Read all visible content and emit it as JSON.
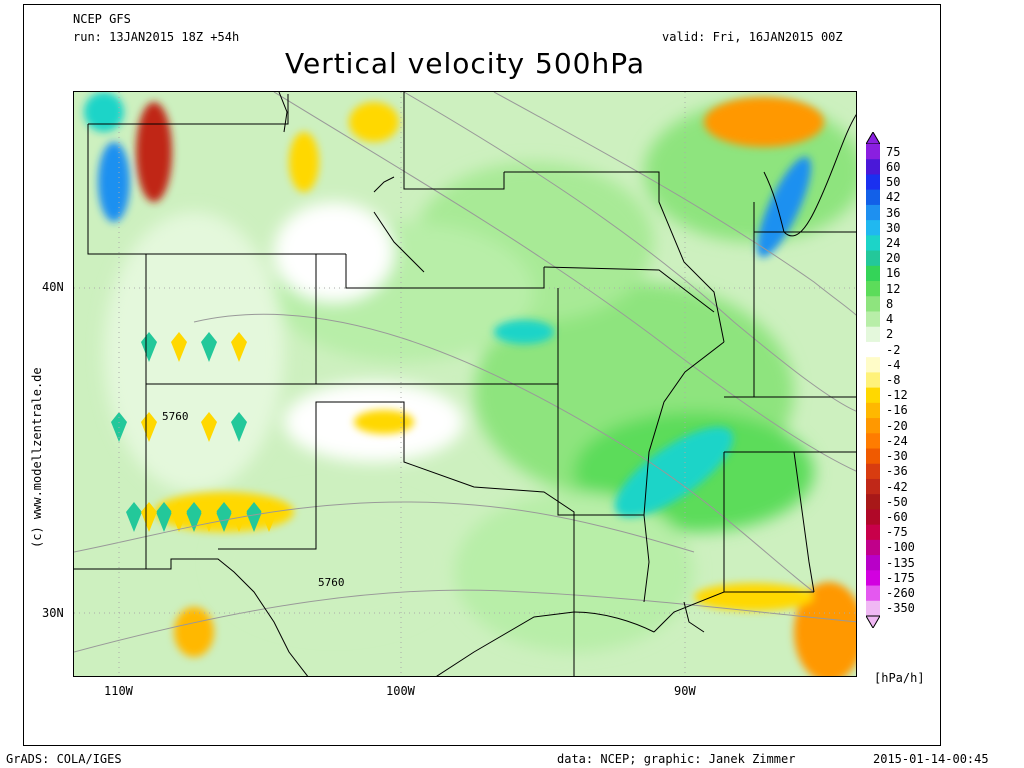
{
  "header": {
    "model": "NCEP GFS",
    "run": "run: 13JAN2015 18Z +54h",
    "valid": "valid: Fri, 16JAN2015 00Z",
    "title": "Vertical velocity 500hPa"
  },
  "map": {
    "lat_labels": [
      "40N",
      "30N"
    ],
    "lon_labels": [
      "110W",
      "100W",
      "90W"
    ],
    "contour_labels": [
      "5760",
      "5760"
    ]
  },
  "colorbar": {
    "unit": "[hPa/h]",
    "levels": [
      "75",
      "60",
      "50",
      "42",
      "36",
      "30",
      "24",
      "20",
      "16",
      "12",
      "8",
      "4",
      "2",
      "-2",
      "-4",
      "-8",
      "-12",
      "-16",
      "-20",
      "-24",
      "-30",
      "-36",
      "-42",
      "-50",
      "-60",
      "-75",
      "-100",
      "-135",
      "-175",
      "-260",
      "-350"
    ],
    "colors": [
      "#8a1fe0",
      "#4a18d8",
      "#1a30f0",
      "#1260e8",
      "#1e90f0",
      "#20b8f0",
      "#1cd4c8",
      "#23c89a",
      "#34d458",
      "#5cdc5a",
      "#8ee47e",
      "#b8eea8",
      "#e4f8dc",
      "#ffffff",
      "#fffcc8",
      "#fff27a",
      "#ffd800",
      "#ffb800",
      "#ff9800",
      "#ff7c00",
      "#f05a00",
      "#d83c10",
      "#c02818",
      "#a81818",
      "#b00828",
      "#c8004a",
      "#c0008a",
      "#b800c8",
      "#d200e0",
      "#e458f0",
      "#f0b8f4"
    ]
  },
  "footer": {
    "left": "GrADS: COLA/IGES",
    "center": "data: NCEP; graphic: Janek Zimmer",
    "right": "2015-01-14-00:45"
  },
  "watermark": "(c) www.modellzentrale.de"
}
